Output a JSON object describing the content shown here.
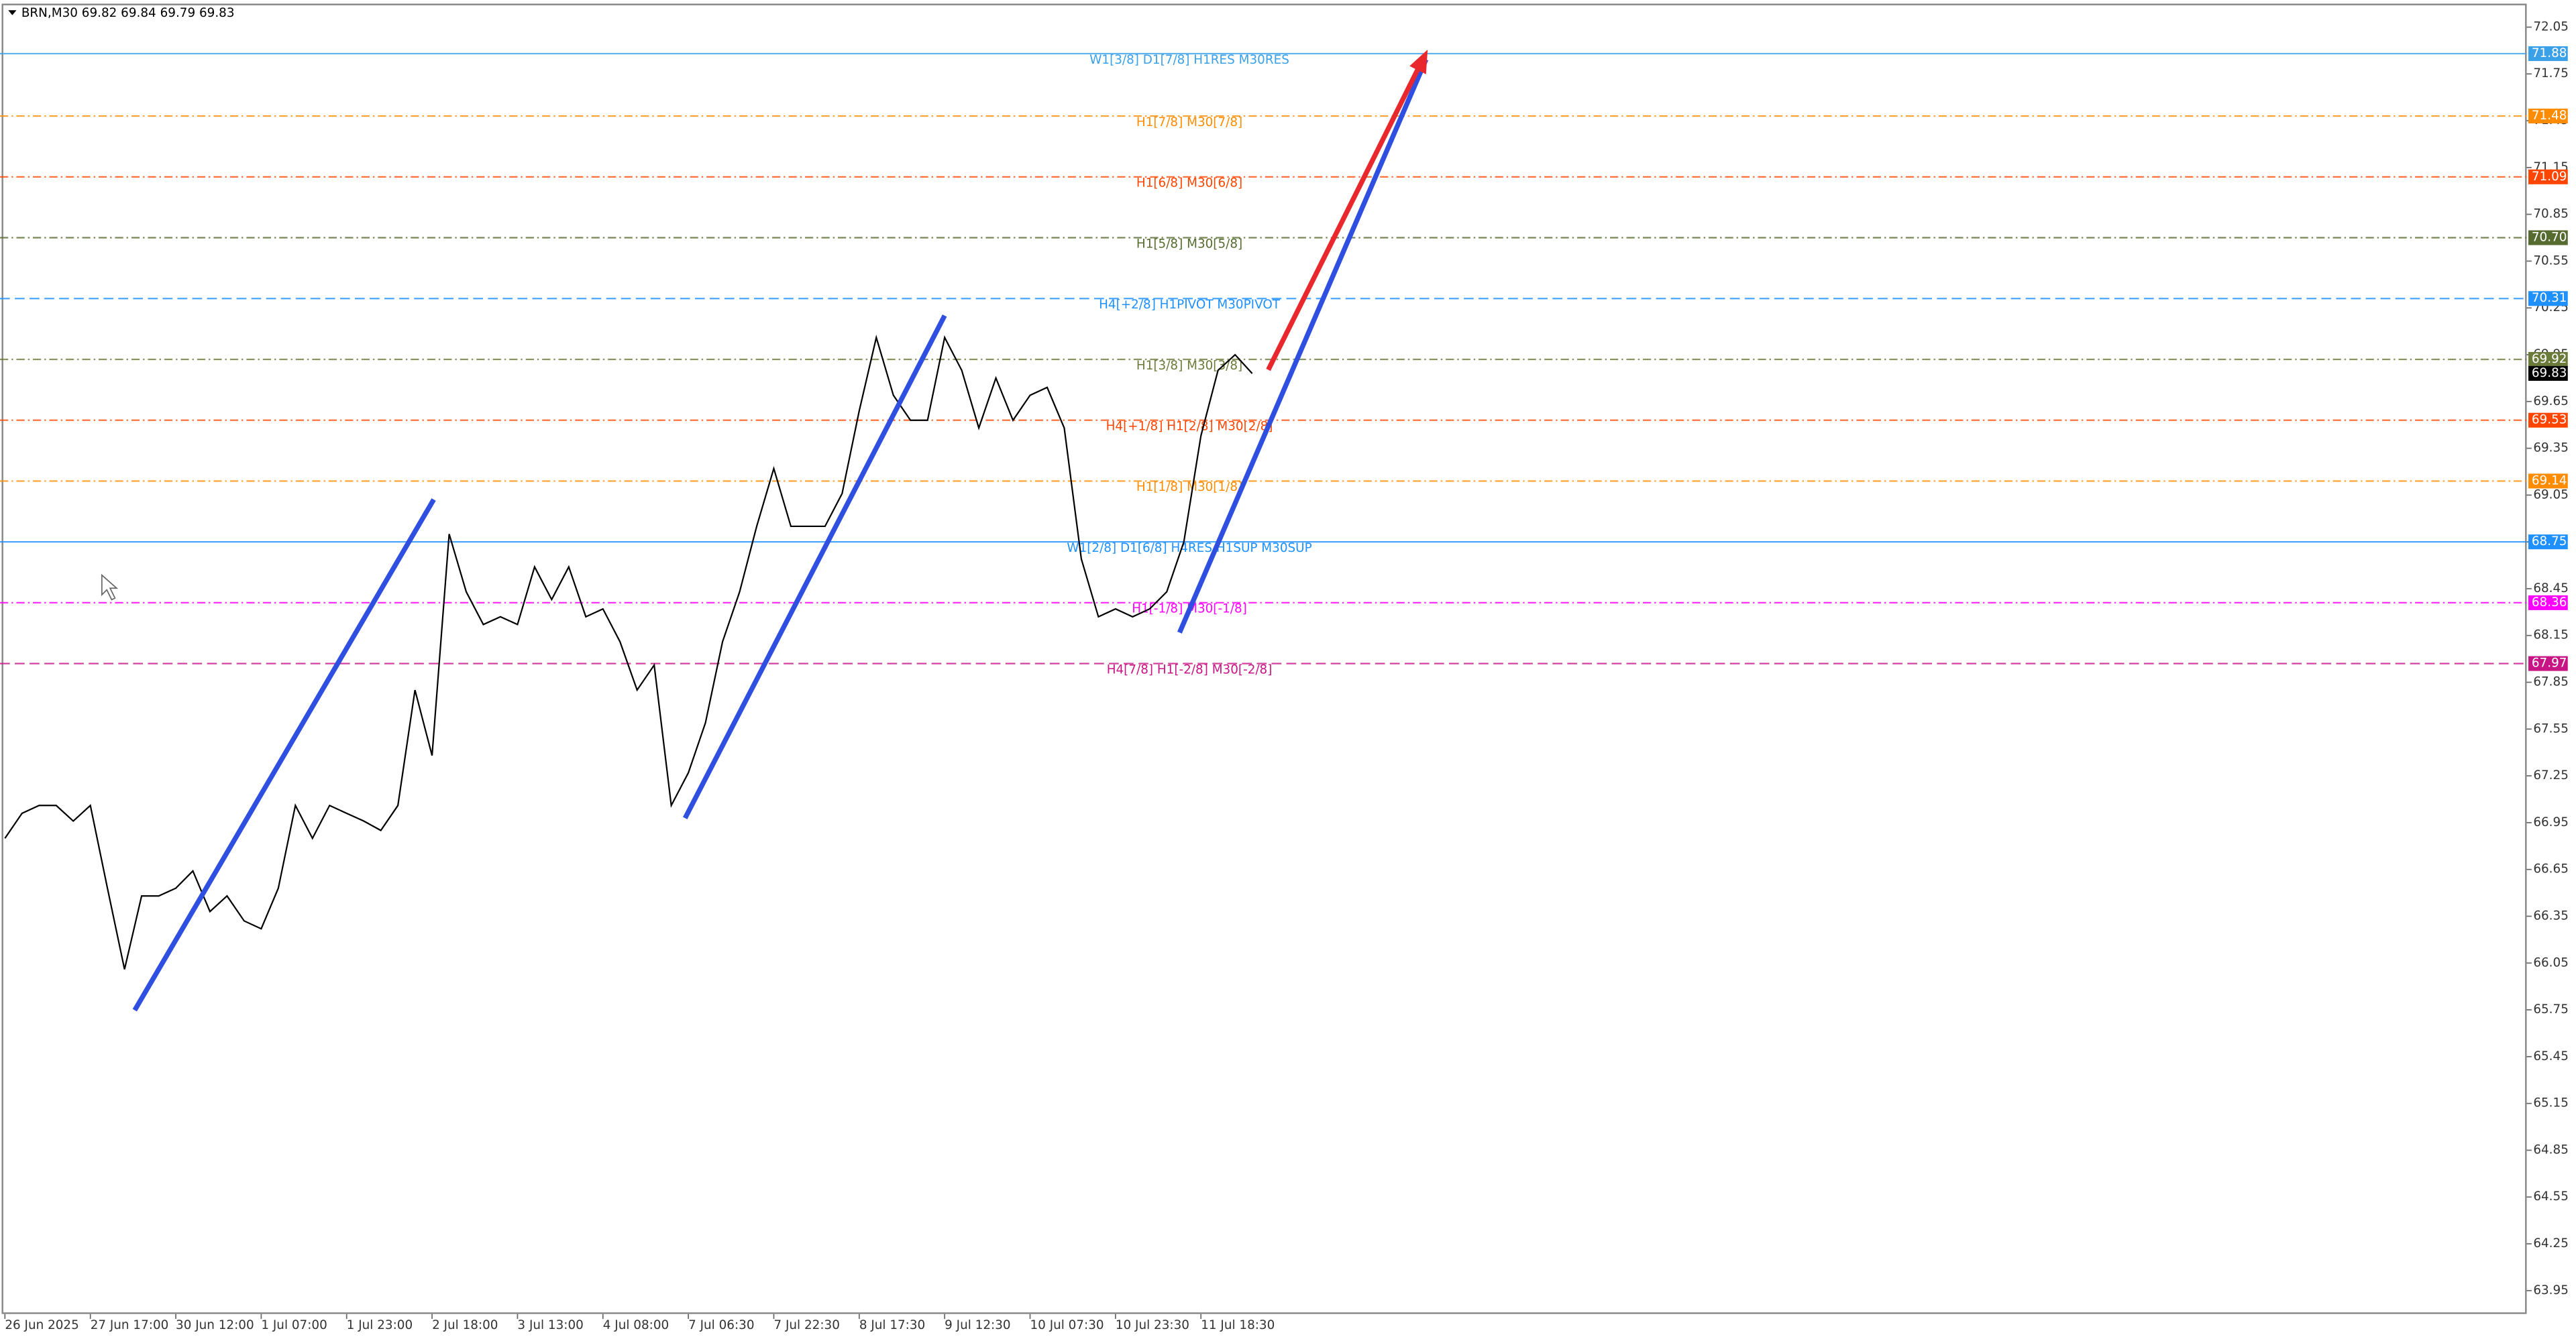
{
  "chart_data": {
    "type": "line",
    "title": "BRN,M30 69.82 69.84 69.79 69.83",
    "categories": [
      "26 Jun 2025",
      null,
      null,
      null,
      null,
      "27 Jun 17:00",
      null,
      null,
      null,
      null,
      "30 Jun 12:00",
      null,
      null,
      null,
      null,
      "1 Jul 07:00",
      null,
      null,
      null,
      null,
      "1 Jul 23:00",
      null,
      null,
      null,
      null,
      "2 Jul 18:00",
      null,
      null,
      null,
      null,
      "3 Jul 13:00",
      null,
      null,
      null,
      null,
      "4 Jul 08:00",
      null,
      null,
      null,
      null,
      "7 Jul 06:30",
      null,
      null,
      null,
      null,
      "7 Jul 22:30",
      null,
      null,
      null,
      null,
      "8 Jul 17:30",
      null,
      null,
      null,
      null,
      "9 Jul 12:30",
      null,
      null,
      null,
      null,
      "10 Jul 07:30",
      null,
      null,
      null,
      null,
      "10 Jul 23:30",
      null,
      null,
      null,
      null,
      "11 Jul 18:30",
      null,
      null,
      null
    ],
    "series": [
      {
        "name": "BRN,M30",
        "color": "#000000",
        "values": [
          66.85,
          67.01,
          67.06,
          67.06,
          66.96,
          67.06,
          66.53,
          66.01,
          66.48,
          66.48,
          66.53,
          66.64,
          66.38,
          66.48,
          66.32,
          66.27,
          66.53,
          67.06,
          66.85,
          67.06,
          67.01,
          66.96,
          66.9,
          67.06,
          67.8,
          67.38,
          68.8,
          68.43,
          68.22,
          68.27,
          68.22,
          68.59,
          68.38,
          68.59,
          68.27,
          68.32,
          68.11,
          67.8,
          67.96,
          67.06,
          67.27,
          67.59,
          68.11,
          68.43,
          68.85,
          69.22,
          68.85,
          68.85,
          68.85,
          69.06,
          69.59,
          70.06,
          69.69,
          69.53,
          69.53,
          70.06,
          69.85,
          69.48,
          69.8,
          69.53,
          69.69,
          69.74,
          69.48,
          68.64,
          68.27,
          68.32,
          68.27,
          68.32,
          68.43,
          68.75,
          69.43,
          69.85,
          69.95,
          69.83
        ]
      }
    ],
    "current_price": 69.83,
    "ylim": [
      63.8,
      72.19
    ],
    "yticks": [
      72.05,
      71.75,
      71.45,
      71.15,
      70.85,
      70.55,
      70.25,
      69.95,
      69.65,
      69.35,
      69.05,
      68.75,
      68.45,
      68.15,
      67.85,
      67.55,
      67.25,
      66.95,
      66.65,
      66.35,
      66.05,
      65.75,
      65.45,
      65.15,
      64.85,
      64.55,
      64.25,
      63.95
    ],
    "levels": [
      {
        "value": 71.88,
        "label": "W1[3/8] D1[7/8] H1RES M30RES",
        "color": "#3aa0e8",
        "style": "solid"
      },
      {
        "value": 71.48,
        "label": "H1[7/8] M30[7/8]",
        "color": "#ff8c00",
        "style": "dashdot"
      },
      {
        "value": 71.09,
        "label": "H1[6/8] M30[6/8]",
        "color": "#ff4500",
        "style": "dashdot"
      },
      {
        "value": 70.7,
        "value_label": "70.70",
        "label": "H1[5/8] M30[5/8]",
        "color": "#556b2f",
        "style": "dashdot"
      },
      {
        "value": 70.31,
        "label": "H4[+2/8] H1PIVOT M30PIVOT",
        "color": "#1e90ff",
        "style": "dash"
      },
      {
        "value": 69.92,
        "label": "H1[3/8] M30[3/8]",
        "color": "#6b7b3a",
        "style": "dashdot"
      },
      {
        "value": 69.53,
        "label": "H4[+1/8] H1[2/8] M30[2/8]",
        "color": "#ff4500",
        "style": "dashdot"
      },
      {
        "value": 69.14,
        "label": "H1[1/8] M30[1/8]",
        "color": "#ff8c00",
        "style": "dashdot"
      },
      {
        "value": 68.75,
        "label": "W1[2/8] D1[6/8] H4RES H1SUP M30SUP",
        "color": "#1e90ff",
        "style": "solid"
      },
      {
        "value": 68.36,
        "label": "H1[-1/8] M30[-1/8]",
        "color": "#ff00ff",
        "style": "dashdot"
      },
      {
        "value": 67.97,
        "label": "H4[7/8] H1[-2/8] M30[-2/8]",
        "color": "#c71585",
        "style": "dash"
      }
    ]
  }
}
